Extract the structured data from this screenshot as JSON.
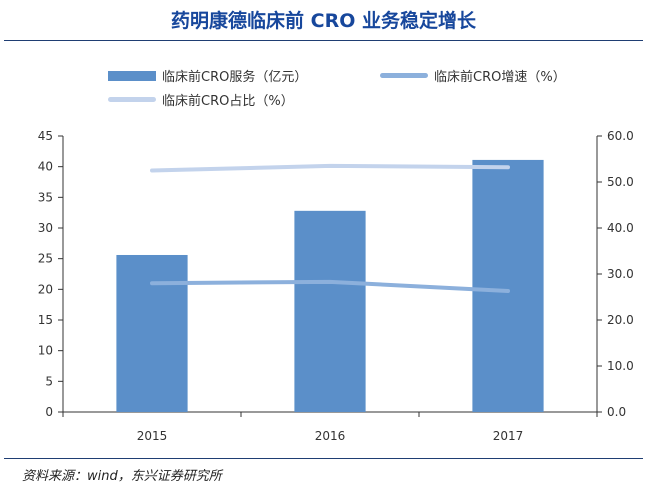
{
  "title": "药明康德临床前 CRO 业务稳定增长",
  "source": "资料来源：wind，东兴证券研究所",
  "colors": {
    "bar": "#5b8fc9",
    "growth_line": "#8cb0dc",
    "share_line": "#c3d3ec",
    "title": "#17479c",
    "rule": "#1f3e73"
  },
  "chart_data": {
    "type": "bar",
    "categories": [
      "2015",
      "2016",
      "2017"
    ],
    "series": [
      {
        "name": "临床前CRO服务（亿元）",
        "type": "bar",
        "axis": "left",
        "values": [
          25.6,
          32.8,
          41.1
        ]
      },
      {
        "name": "临床前CRO增速（%）",
        "type": "line",
        "axis": "right",
        "values": [
          28.0,
          28.3,
          26.3
        ]
      },
      {
        "name": "临床前CRO占比（%）",
        "type": "line",
        "axis": "right",
        "values": [
          52.5,
          53.5,
          53.2
        ]
      }
    ],
    "y_left": {
      "min": 0,
      "max": 45,
      "ticks": [
        "0",
        "5",
        "10",
        "15",
        "20",
        "25",
        "30",
        "35",
        "40",
        "45"
      ]
    },
    "y_right": {
      "min": 0,
      "max": 60,
      "ticks": [
        "0.0",
        "10.0",
        "20.0",
        "30.0",
        "40.0",
        "50.0",
        "60.0"
      ]
    },
    "grid": false,
    "legend_position": "top"
  }
}
